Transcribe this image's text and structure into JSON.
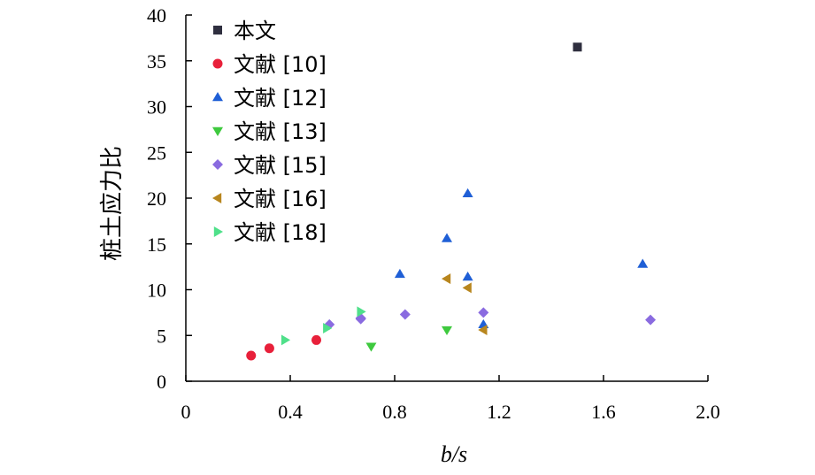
{
  "chart_data": {
    "type": "scatter",
    "title": "",
    "xlabel": "b/s",
    "ylabel": "桩土应力比",
    "xlim": [
      0,
      2.0
    ],
    "ylim": [
      0,
      40
    ],
    "x_ticks": [
      0,
      0.4,
      0.8,
      1.2,
      1.6,
      2.0
    ],
    "x_tick_labels": [
      "0",
      "0.4",
      "0.8",
      "1.2",
      "1.6",
      "2.0"
    ],
    "y_ticks": [
      0,
      5,
      10,
      15,
      20,
      25,
      30,
      35,
      40
    ],
    "y_tick_labels": [
      "0",
      "5",
      "10",
      "15",
      "20",
      "25",
      "30",
      "35",
      "40"
    ],
    "grid": false,
    "legend_position": "top-left",
    "series": [
      {
        "name": "本文",
        "marker": "square",
        "color": "#2f2f3f",
        "points": [
          [
            1.5,
            36.5
          ]
        ]
      },
      {
        "name": "文献 [10]",
        "marker": "circle",
        "color": "#e8203a",
        "points": [
          [
            0.25,
            2.8
          ],
          [
            0.32,
            3.6
          ],
          [
            0.5,
            4.5
          ]
        ]
      },
      {
        "name": "文献 [12]",
        "marker": "triangle-up",
        "color": "#1f5fd6",
        "points": [
          [
            0.82,
            11.7
          ],
          [
            1.0,
            15.6
          ],
          [
            1.08,
            20.5
          ],
          [
            1.08,
            11.4
          ],
          [
            1.14,
            6.2
          ],
          [
            1.75,
            12.8
          ]
        ]
      },
      {
        "name": "文献 [13]",
        "marker": "triangle-down",
        "color": "#3ec93e",
        "points": [
          [
            0.71,
            3.8
          ],
          [
            1.0,
            5.6
          ]
        ]
      },
      {
        "name": "文献 [15]",
        "marker": "diamond",
        "color": "#8a6be0",
        "points": [
          [
            0.55,
            6.2
          ],
          [
            0.67,
            6.8
          ],
          [
            0.67,
            6.9
          ],
          [
            0.84,
            7.3
          ],
          [
            1.14,
            7.5
          ],
          [
            1.78,
            6.7
          ]
        ]
      },
      {
        "name": "文献 [16]",
        "marker": "triangle-left",
        "color": "#b8861e",
        "points": [
          [
            1.0,
            11.2
          ],
          [
            1.08,
            10.2
          ],
          [
            1.14,
            5.6
          ]
        ]
      },
      {
        "name": "文献 [18]",
        "marker": "triangle-right",
        "color": "#4fe08a",
        "points": [
          [
            0.38,
            4.5
          ],
          [
            0.54,
            5.8
          ],
          [
            0.67,
            7.6
          ]
        ]
      }
    ]
  }
}
